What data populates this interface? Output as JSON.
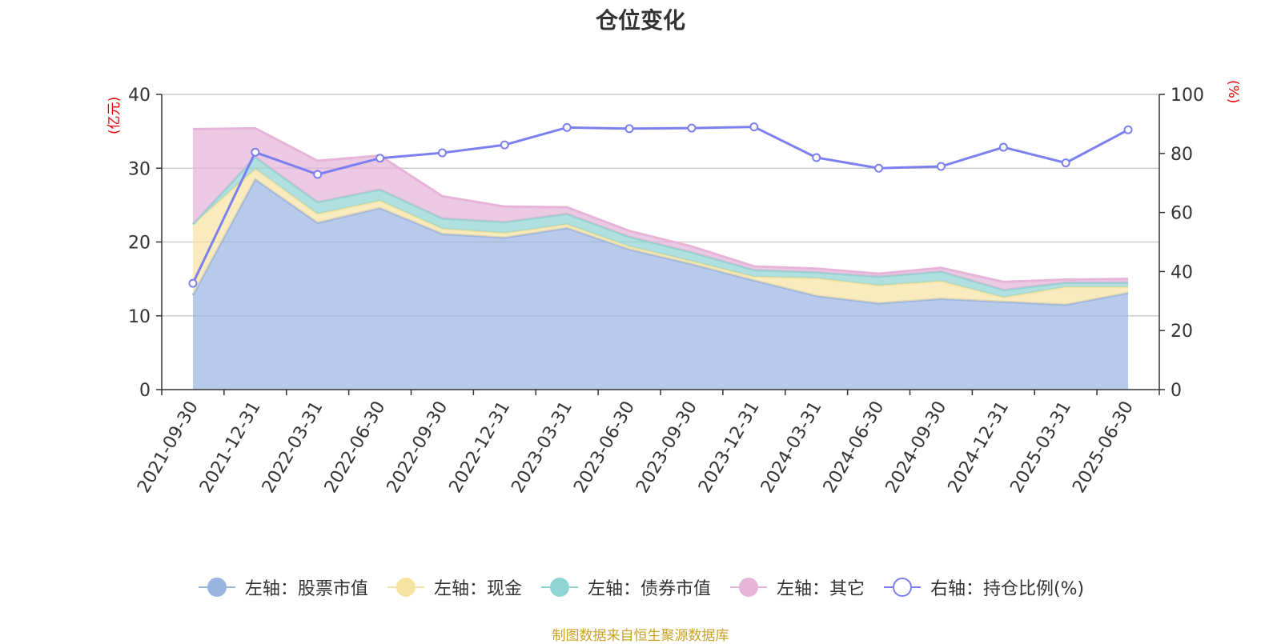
{
  "title": "仓位变化",
  "source_note": "制图数据来自恒生聚源数据库",
  "colors": {
    "stock": "#9ab4e0",
    "cash": "#f7e3a1",
    "bond": "#8fd3d3",
    "other": "#e6b3d9",
    "ratio": "#7b7ff0",
    "grid": "#cccccc",
    "axis": "#333333",
    "unit": "#e60000",
    "source": "#c9a227"
  },
  "chart_data": {
    "type": "area",
    "title": "仓位变化",
    "x": [
      "2021-09-30",
      "2021-12-31",
      "2022-03-31",
      "2022-06-30",
      "2022-09-30",
      "2022-12-31",
      "2023-03-31",
      "2023-06-30",
      "2023-09-30",
      "2023-12-31",
      "2024-03-31",
      "2024-06-30",
      "2024-09-30",
      "2024-12-31",
      "2025-03-31",
      "2025-06-30"
    ],
    "left_axis": {
      "unit": "(亿元)",
      "ylim": [
        0,
        40
      ],
      "ticks": [
        0,
        10,
        20,
        30,
        40
      ]
    },
    "right_axis": {
      "unit": "(%)",
      "ylim": [
        0,
        100
      ],
      "ticks": [
        0,
        20,
        40,
        60,
        80,
        100
      ]
    },
    "grid": true,
    "legend_position": "bottom",
    "stacked_series": [
      {
        "name": "左轴：股票市值",
        "color_key": "stock",
        "values": [
          12.8,
          28.5,
          22.6,
          24.6,
          21.1,
          20.6,
          21.9,
          19.0,
          17.0,
          14.8,
          12.7,
          11.7,
          12.3,
          11.9,
          11.5,
          13.1
        ]
      },
      {
        "name": "左轴：现金",
        "color_key": "cash",
        "values": [
          9.6,
          1.4,
          1.2,
          1.0,
          0.7,
          0.6,
          0.5,
          0.4,
          0.4,
          0.5,
          2.4,
          2.4,
          2.4,
          0.6,
          2.4,
          0.8
        ]
      },
      {
        "name": "左轴：债券市值",
        "color_key": "bond",
        "values": [
          0.0,
          1.6,
          1.6,
          1.5,
          1.4,
          1.5,
          1.4,
          1.3,
          1.2,
          0.9,
          0.8,
          1.2,
          1.3,
          1.0,
          0.6,
          0.6
        ]
      },
      {
        "name": "左轴：其它",
        "color_key": "other",
        "values": [
          12.9,
          3.9,
          5.6,
          4.6,
          3.0,
          2.1,
          0.9,
          0.8,
          0.8,
          0.5,
          0.5,
          0.4,
          0.5,
          1.1,
          0.4,
          0.5
        ]
      }
    ],
    "line_series": {
      "name": "右轴：持仓比例(%)",
      "color_key": "ratio",
      "axis": "right",
      "values": [
        36.0,
        80.4,
        72.9,
        78.4,
        80.2,
        82.9,
        88.8,
        88.4,
        88.6,
        89.0,
        78.6,
        75.0,
        75.6,
        82.1,
        76.8,
        88.0
      ]
    }
  }
}
